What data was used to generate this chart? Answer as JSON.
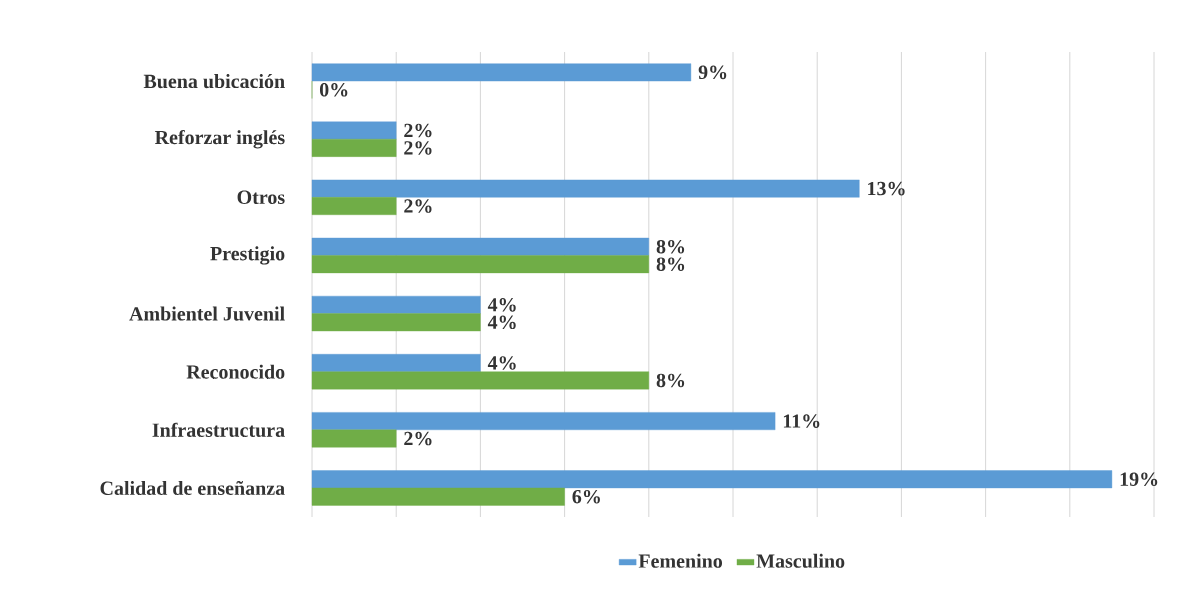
{
  "chart_data": {
    "type": "bar",
    "orientation": "horizontal",
    "categories": [
      "Buena ubicación",
      "Reforzar inglés",
      "Otros",
      "Prestigio",
      "Ambientel Juvenil",
      "Reconocido",
      "Infraestructura",
      "Calidad de enseñanza"
    ],
    "series": [
      {
        "name": "Femenino",
        "color": "#5b9bd5",
        "values": [
          9,
          2,
          13,
          8,
          4,
          4,
          11,
          19
        ],
        "value_labels": [
          "9%",
          "2%",
          "13%",
          "8%",
          "4%",
          "4%",
          "11%",
          "19%"
        ]
      },
      {
        "name": "Masculino",
        "color": "#70ad47",
        "values": [
          0,
          2,
          2,
          8,
          4,
          8,
          2,
          6
        ],
        "value_labels": [
          "0%",
          "2%",
          "2%",
          "8%",
          "4%",
          "8%",
          "2%",
          "6%"
        ]
      }
    ],
    "xlim": [
      0,
      20
    ],
    "xticks": [
      {
        "value": 0,
        "label": null
      },
      {
        "value": 2,
        "label": null
      },
      {
        "value": 4,
        "label": null
      },
      {
        "value": 6,
        "label": null
      },
      {
        "value": 8,
        "label": null
      },
      {
        "value": 10,
        "label": null
      },
      {
        "value": 12,
        "label": null
      },
      {
        "value": 14,
        "label": null
      },
      {
        "value": 16,
        "label": null
      },
      {
        "value": 18,
        "label": null
      },
      {
        "value": 20,
        "label": null
      }
    ],
    "tick_labels": "y",
    "grid": "x",
    "legend": "bottom"
  }
}
